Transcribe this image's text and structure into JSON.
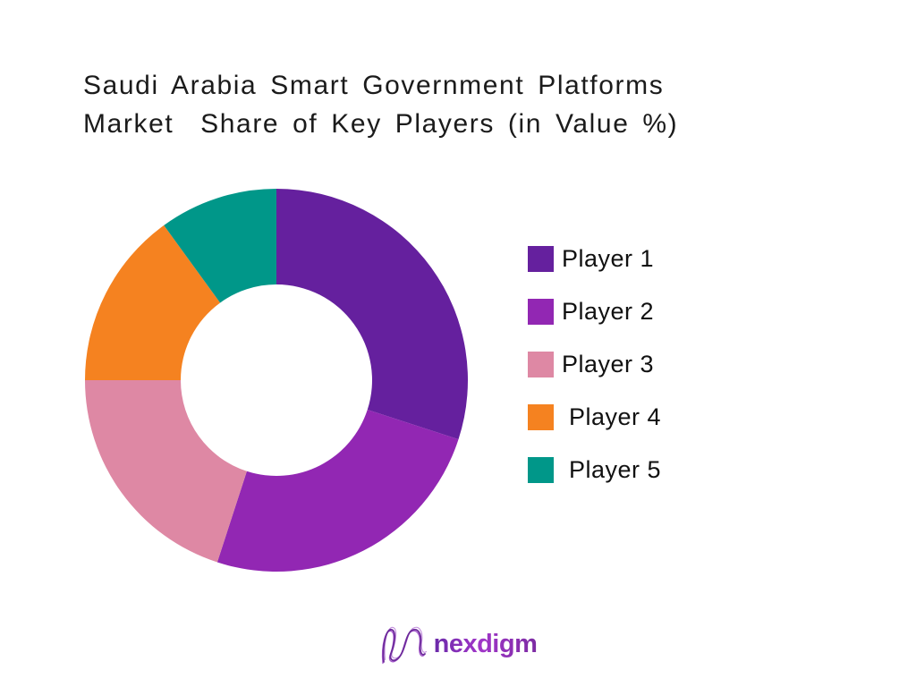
{
  "title": {
    "line1": "Saudi Arabia Smart Government Platforms",
    "line2": "Market  Share of Key Players (in Value %)",
    "color": "#1b1b1b"
  },
  "chart_data": {
    "type": "pie",
    "subtype": "donut",
    "title": "Saudi Arabia Smart Government Platforms Market Share of Key Players (in Value %)",
    "unit": "value %",
    "categories": [
      "Player 1",
      "Player 2",
      "Player 3",
      "Player 4",
      "Player 5"
    ],
    "values": [
      30,
      25,
      20,
      15,
      10
    ],
    "colors": [
      "#65209e",
      "#9227b3",
      "#de88a4",
      "#f58220",
      "#009789"
    ],
    "start_angle_deg": 0,
    "direction": "clockwise",
    "inner_radius_ratio": 0.5,
    "data_labels_shown": false,
    "legend_position": "right"
  },
  "legend": {
    "items": [
      {
        "label": "Player 1",
        "color": "#65209e"
      },
      {
        "label": "Player 2",
        "color": "#9227b3"
      },
      {
        "label": "Player 3",
        "color": "#de88a4"
      },
      {
        "label": "Player 4",
        "color": "#f58220"
      },
      {
        "label": "Player 5",
        "color": "#009789"
      }
    ]
  },
  "footer": {
    "logo_text": "nexdigm",
    "logo_colors": [
      "#c490de",
      "#a558cb",
      "#6d2a9b"
    ]
  }
}
